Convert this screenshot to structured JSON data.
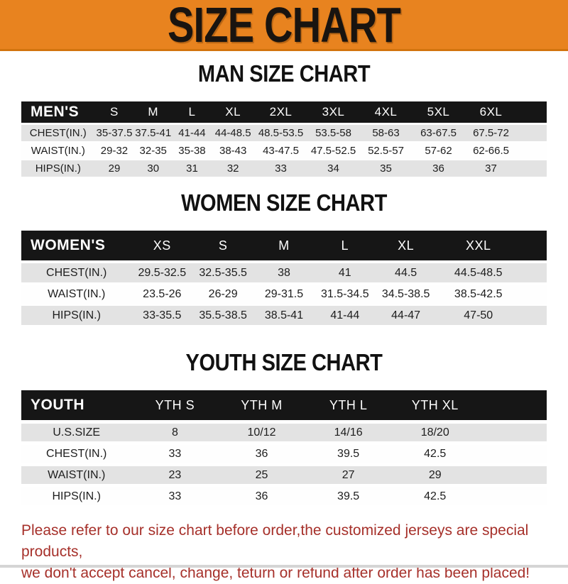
{
  "banner": {
    "title": "SIZE CHART"
  },
  "sections": [
    {
      "heading": "MAN SIZE CHART",
      "table": {
        "corner_label": "MEN'S",
        "columns": [
          "S",
          "M",
          "L",
          "XL",
          "2XL",
          "3XL",
          "4XL",
          "5XL",
          "6XL"
        ],
        "rows": [
          {
            "label": "CHEST(IN.)",
            "values": [
              "35-37.5",
              "37.5-41",
              "41-44",
              "44-48.5",
              "48.5-53.5",
              "53.5-58",
              "58-63",
              "63-67.5",
              "67.5-72"
            ]
          },
          {
            "label": "WAIST(IN.)",
            "values": [
              "29-32",
              "32-35",
              "35-38",
              "38-43",
              "43-47.5",
              "47.5-52.5",
              "52.5-57",
              "57-62",
              "62-66.5"
            ]
          },
          {
            "label": "HIPS(IN.)",
            "values": [
              "29",
              "30",
              "31",
              "32",
              "33",
              "34",
              "35",
              "36",
              "37"
            ]
          }
        ]
      }
    },
    {
      "heading": "WOMEN SIZE CHART",
      "table": {
        "corner_label": "WOMEN'S",
        "columns": [
          "XS",
          "S",
          "M",
          "L",
          "XL",
          "XXL"
        ],
        "rows": [
          {
            "label": "CHEST(IN.)",
            "values": [
              "29.5-32.5",
              "32.5-35.5",
              "38",
              "41",
              "44.5",
              "44.5-48.5"
            ]
          },
          {
            "label": "WAIST(IN.)",
            "values": [
              "23.5-26",
              "26-29",
              "29-31.5",
              "31.5-34.5",
              "34.5-38.5",
              "38.5-42.5"
            ]
          },
          {
            "label": "HIPS(IN.)",
            "values": [
              "33-35.5",
              "35.5-38.5",
              "38.5-41",
              "41-44",
              "44-47",
              "47-50"
            ]
          }
        ]
      }
    },
    {
      "heading": "YOUTH SIZE CHART",
      "table": {
        "corner_label": "YOUTH",
        "columns": [
          "YTH S",
          "YTH M",
          "YTH L",
          "YTH XL"
        ],
        "rows": [
          {
            "label": "U.S.SIZE",
            "values": [
              "8",
              "10/12",
              "14/16",
              "18/20"
            ]
          },
          {
            "label": "CHEST(IN.)",
            "values": [
              "33",
              "36",
              "39.5",
              "42.5"
            ]
          },
          {
            "label": "WAIST(IN.)",
            "values": [
              "23",
              "25",
              "27",
              "29"
            ]
          },
          {
            "label": "HIPS(IN.)",
            "values": [
              "33",
              "36",
              "39.5",
              "42.5"
            ]
          }
        ]
      }
    }
  ],
  "footer": {
    "line1": "Please refer to our size chart before order,the customized jerseys are special products,",
    "line2": "we don't accept cancel, change, teturn or refund after order has been placed!"
  },
  "colors": {
    "banner_bg": "#E8831F",
    "header_bar": "#161616",
    "row_shaded": "#E3E3E3",
    "footer_text": "#A6302A"
  }
}
